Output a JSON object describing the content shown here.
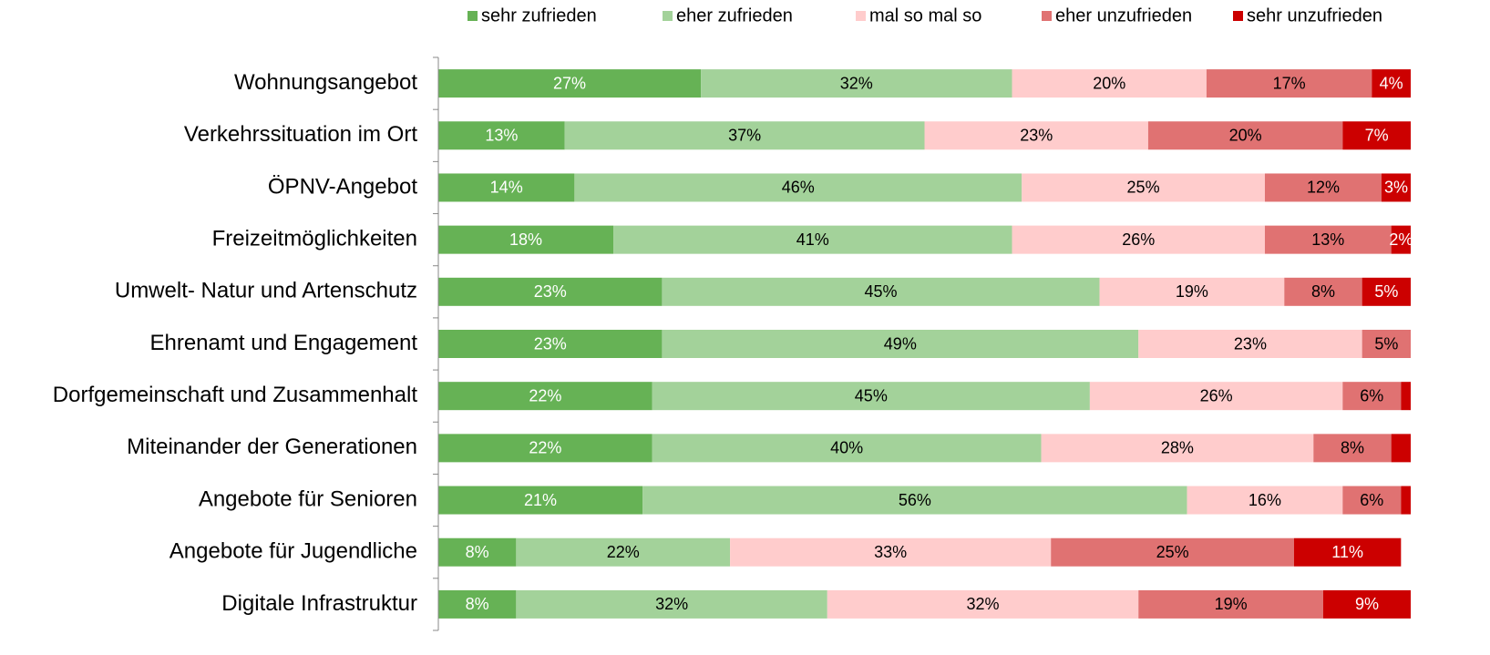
{
  "chart_data": {
    "type": "stacked_barh",
    "categories": [
      "Wohnungsangebot",
      "Verkehrssituation im Ort",
      "ÖPNV-Angebot",
      "Freizeitmöglichkeiten",
      "Umwelt- Natur und Artenschutz",
      "Ehrenamt und Engagement",
      "Dorfgemeinschaft und Zusammenhalt",
      "Miteinander der Generationen",
      "Angebote für Senioren",
      "Angebote für Jugendliche",
      "Digitale Infrastruktur"
    ],
    "xlim": [
      0,
      100
    ],
    "legend": "top",
    "series": [
      {
        "name": "sehr zufrieden",
        "color": "#66b255",
        "label_color": "#ffffff",
        "values": [
          27,
          13,
          14,
          18,
          23,
          23,
          22,
          22,
          21,
          8,
          8
        ],
        "value_labels": [
          "27%",
          "13%",
          "14%",
          "18%",
          "23%",
          "23%",
          "22%",
          "22%",
          "21%",
          "8%",
          "8%"
        ]
      },
      {
        "name": "eher zufrieden",
        "color": "#a3d29a",
        "label_color": "#000000",
        "values": [
          32,
          37,
          46,
          41,
          45,
          49,
          45,
          40,
          56,
          22,
          32
        ],
        "value_labels": [
          "32%",
          "37%",
          "46%",
          "41%",
          "45%",
          "49%",
          "45%",
          "40%",
          "56%",
          "22%",
          "32%"
        ]
      },
      {
        "name": "mal so mal so",
        "color": "#ffcccc",
        "label_color": "#000000",
        "values": [
          20,
          23,
          25,
          26,
          19,
          23,
          26,
          28,
          16,
          33,
          32
        ],
        "value_labels": [
          "20%",
          "23%",
          "25%",
          "26%",
          "19%",
          "23%",
          "26%",
          "28%",
          "16%",
          "33%",
          "32%"
        ]
      },
      {
        "name": "eher unzufrieden",
        "color": "#e07272",
        "label_color": "#000000",
        "values": [
          17,
          20,
          12,
          13,
          8,
          5,
          6,
          8,
          6,
          25,
          19
        ],
        "value_labels": [
          "17%",
          "20%",
          "12%",
          "13%",
          "8%",
          "5%",
          "6%",
          "8%",
          "6%",
          "25%",
          "19%"
        ]
      },
      {
        "name": "sehr unzufrieden",
        "color": "#cc0000",
        "label_color": "#ffffff",
        "values": [
          4,
          7,
          3,
          2,
          5,
          0,
          1,
          2,
          1,
          11,
          9
        ],
        "value_labels": [
          "4%",
          "7%",
          "3%",
          "2%",
          "5%",
          null,
          null,
          null,
          null,
          "11%",
          "9%"
        ]
      }
    ]
  }
}
